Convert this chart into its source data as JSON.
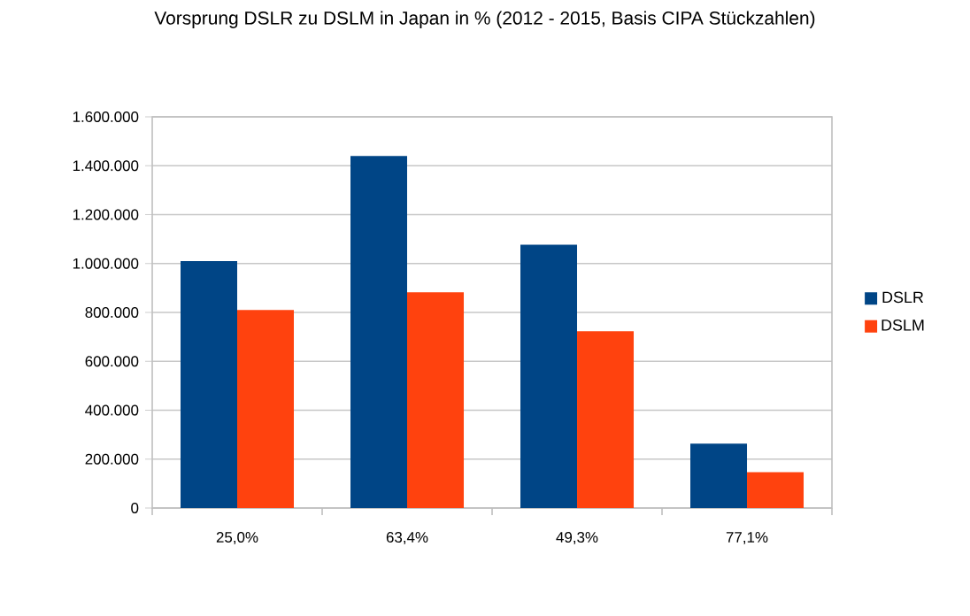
{
  "chart_data": {
    "type": "bar",
    "title": "Vorsprung DSLR zu DSLM in Japan in % (2012 - 2015, Basis CIPA Stückzahlen)",
    "categories": [
      "25,0%",
      "63,4%",
      "49,3%",
      "77,1%"
    ],
    "series": [
      {
        "name": "DSLR",
        "color": "#004586",
        "values": [
          1010000,
          1440000,
          1077000,
          263000
        ]
      },
      {
        "name": "DSLM",
        "color": "#ff420e",
        "values": [
          810000,
          882000,
          723000,
          147000
        ]
      }
    ],
    "ylim": [
      0,
      1600000
    ],
    "yticks": [
      {
        "value": 0,
        "label": "0"
      },
      {
        "value": 200000,
        "label": "200.000"
      },
      {
        "value": 400000,
        "label": "400.000"
      },
      {
        "value": 600000,
        "label": "600.000"
      },
      {
        "value": 800000,
        "label": "800.000"
      },
      {
        "value": 1000000,
        "label": "1.000.000"
      },
      {
        "value": 1200000,
        "label": "1.200.000"
      },
      {
        "value": 1400000,
        "label": "1.400.000"
      },
      {
        "value": 1600000,
        "label": "1.600.000"
      }
    ],
    "grid": "y",
    "legend": "right"
  }
}
